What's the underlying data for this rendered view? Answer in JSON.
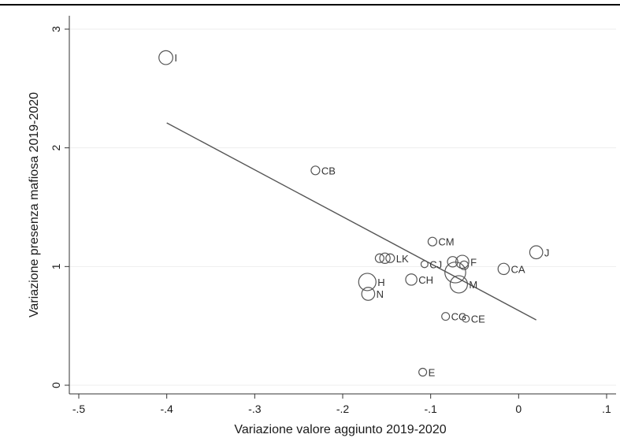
{
  "chart_data": {
    "type": "scatter",
    "title": "",
    "xlabel": "Variazione valore aggiunto 2019-2020",
    "ylabel": "Variazione presenza mafiosa 2019-2020",
    "xlim": [
      -0.5,
      0.1
    ],
    "ylim": [
      0,
      3
    ],
    "xticks": [
      -0.5,
      -0.4,
      -0.3,
      -0.2,
      -0.1,
      0,
      0.1
    ],
    "xtick_labels": [
      "-.5",
      "-.4",
      "-.3",
      "-.2",
      "-.1",
      "0",
      ".1"
    ],
    "yticks": [
      0,
      1,
      2,
      3
    ],
    "ytick_labels": [
      "0",
      "1",
      "2",
      "3"
    ],
    "grid": true,
    "marker_color": "#555555",
    "fit_line": {
      "x": [
        -0.4,
        0.02
      ],
      "y": [
        2.21,
        0.55
      ]
    },
    "points": [
      {
        "label": "I",
        "x": -0.401,
        "y": 2.76,
        "weight": 1.6
      },
      {
        "label": "CB",
        "x": -0.231,
        "y": 1.81,
        "weight": 1.0
      },
      {
        "label": "CM",
        "x": -0.098,
        "y": 1.21,
        "weight": 1.0
      },
      {
        "label": "J",
        "x": 0.02,
        "y": 1.12,
        "weight": 1.5
      },
      {
        "label": "",
        "x": -0.158,
        "y": 1.07,
        "weight": 1.0
      },
      {
        "label": "",
        "x": -0.152,
        "y": 1.07,
        "weight": 1.2
      },
      {
        "label": "LK",
        "x": -0.146,
        "y": 1.07,
        "weight": 1.0
      },
      {
        "label": "CJ",
        "x": -0.107,
        "y": 1.02,
        "weight": 0.8
      },
      {
        "label": "",
        "x": -0.075,
        "y": 1.04,
        "weight": 1.2
      },
      {
        "label": "F",
        "x": -0.064,
        "y": 1.04,
        "weight": 1.5
      },
      {
        "label": "",
        "x": -0.062,
        "y": 1.01,
        "weight": 1.0
      },
      {
        "label": "",
        "x": -0.072,
        "y": 0.95,
        "weight": 2.4
      },
      {
        "label": "CA",
        "x": -0.017,
        "y": 0.98,
        "weight": 1.3
      },
      {
        "label": "CH",
        "x": -0.122,
        "y": 0.89,
        "weight": 1.3
      },
      {
        "label": "H",
        "x": -0.172,
        "y": 0.87,
        "weight": 2.0
      },
      {
        "label": "M",
        "x": -0.068,
        "y": 0.85,
        "weight": 2.0
      },
      {
        "label": "N",
        "x": -0.171,
        "y": 0.77,
        "weight": 1.5
      },
      {
        "label": "CG",
        "x": -0.083,
        "y": 0.58,
        "weight": 0.9
      },
      {
        "label": "CE",
        "x": -0.06,
        "y": 0.56,
        "weight": 0.8
      },
      {
        "label": "E",
        "x": -0.109,
        "y": 0.11,
        "weight": 0.9
      }
    ]
  }
}
